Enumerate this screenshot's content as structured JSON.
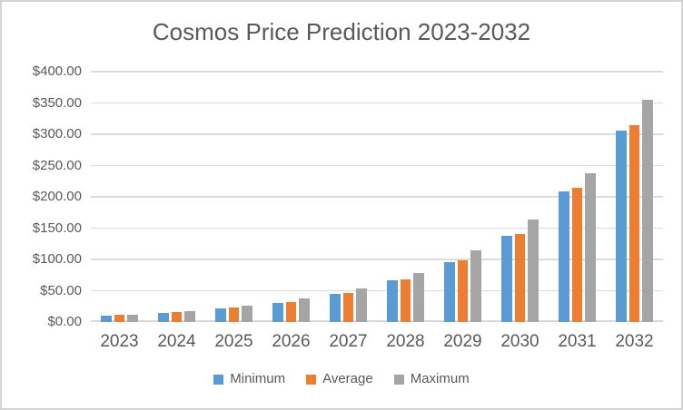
{
  "chart_data": {
    "type": "bar",
    "title": "Cosmos Price Prediction 2023-2032",
    "categories": [
      "2023",
      "2024",
      "2025",
      "2026",
      "2027",
      "2028",
      "2029",
      "2030",
      "2031",
      "2032"
    ],
    "series": [
      {
        "name": "Minimum",
        "color": "#5B9BD5",
        "values": [
          10,
          15,
          22,
          31,
          45,
          66,
          96,
          137,
          208,
          306
        ]
      },
      {
        "name": "Average",
        "color": "#ED7D31",
        "values": [
          11,
          16,
          23,
          32,
          47,
          68,
          99,
          141,
          214,
          315
        ]
      },
      {
        "name": "Maximum",
        "color": "#A5A5A5",
        "values": [
          12,
          18,
          26,
          38,
          54,
          78,
          114,
          164,
          238,
          355
        ]
      }
    ],
    "xlabel": "",
    "ylabel": "",
    "y_axis": {
      "min": 0,
      "max": 400,
      "step": 50,
      "tick_labels_top_to_bottom": [
        "$400.00",
        "$350.00",
        "$300.00",
        "$250.00",
        "$200.00",
        "$150.00",
        "$100.00",
        "$50.00",
        "$0.00"
      ]
    },
    "grid": true,
    "legend_position": "bottom",
    "colors": {
      "grid_line": "#dbdbdb",
      "axis_line": "#d9d9d9",
      "text": "#595959",
      "frame_border": "#d3d3d3",
      "background": "#ffffff"
    }
  }
}
